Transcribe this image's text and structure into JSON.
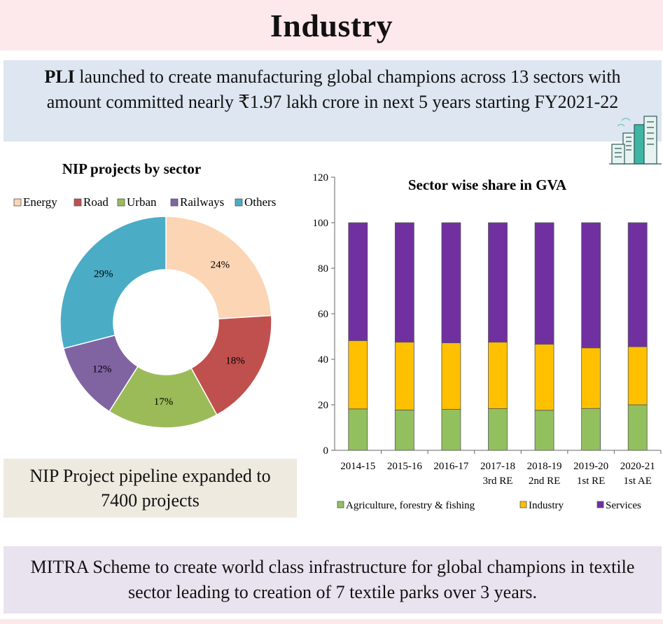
{
  "page": {
    "title": "Industry",
    "pli": {
      "bold": "PLI",
      "text": " launched to create manufacturing global champions  across 13 sectors with amount committed nearly ₹1.97 lakh crore in next 5 years starting FY2021-22"
    },
    "nip_text": "NIP Project pipeline expanded to 7400 projects",
    "mitra_text": "MITRA Scheme to create world class infrastructure for global champions in textile sector leading to creation of 7 textile parks over 3 years."
  },
  "colors": {
    "Energy": "#fcd5b5",
    "Road": "#c0504d",
    "Urban": "#9bbb59",
    "Railways": "#8064a2",
    "Others": "#4bacc6",
    "Agriculture": "#92c05f",
    "Industry": "#ffc000",
    "Services": "#7030a0"
  },
  "chart_data": [
    {
      "type": "pie",
      "title": "NIP projects by sector",
      "legend_position": "top",
      "labels": [
        "Energy",
        "Road",
        "Urban",
        "Railways",
        "Others"
      ],
      "values": [
        24,
        18,
        17,
        12,
        29
      ],
      "value_labels": [
        "24%",
        "18%",
        "17%",
        "12%",
        "29%"
      ],
      "donut": true
    },
    {
      "type": "bar",
      "stacked": true,
      "title": "Sector wise share in GVA",
      "categories": [
        "2014-15",
        "2015-16",
        "2016-17",
        "2017-18",
        "2018-19",
        "2019-20",
        "2020-21"
      ],
      "category_sublabels": [
        "",
        "",
        "",
        "3rd RE",
        "2nd RE",
        "1st RE",
        "1st AE"
      ],
      "series": [
        {
          "name": "Agriculture, forestry & fishing",
          "values": [
            18.2,
            17.7,
            18.0,
            18.3,
            17.6,
            18.4,
            20.0
          ]
        },
        {
          "name": "Industry",
          "values": [
            30.0,
            29.8,
            29.2,
            29.2,
            29.0,
            26.6,
            25.5
          ]
        },
        {
          "name": "Services",
          "values": [
            51.8,
            52.5,
            52.8,
            52.5,
            53.4,
            55.0,
            54.5
          ]
        }
      ],
      "ylim": [
        0,
        120
      ],
      "yticks": [
        0,
        20,
        40,
        60,
        80,
        100,
        120
      ],
      "legend_position": "bottom",
      "grid": false
    }
  ]
}
